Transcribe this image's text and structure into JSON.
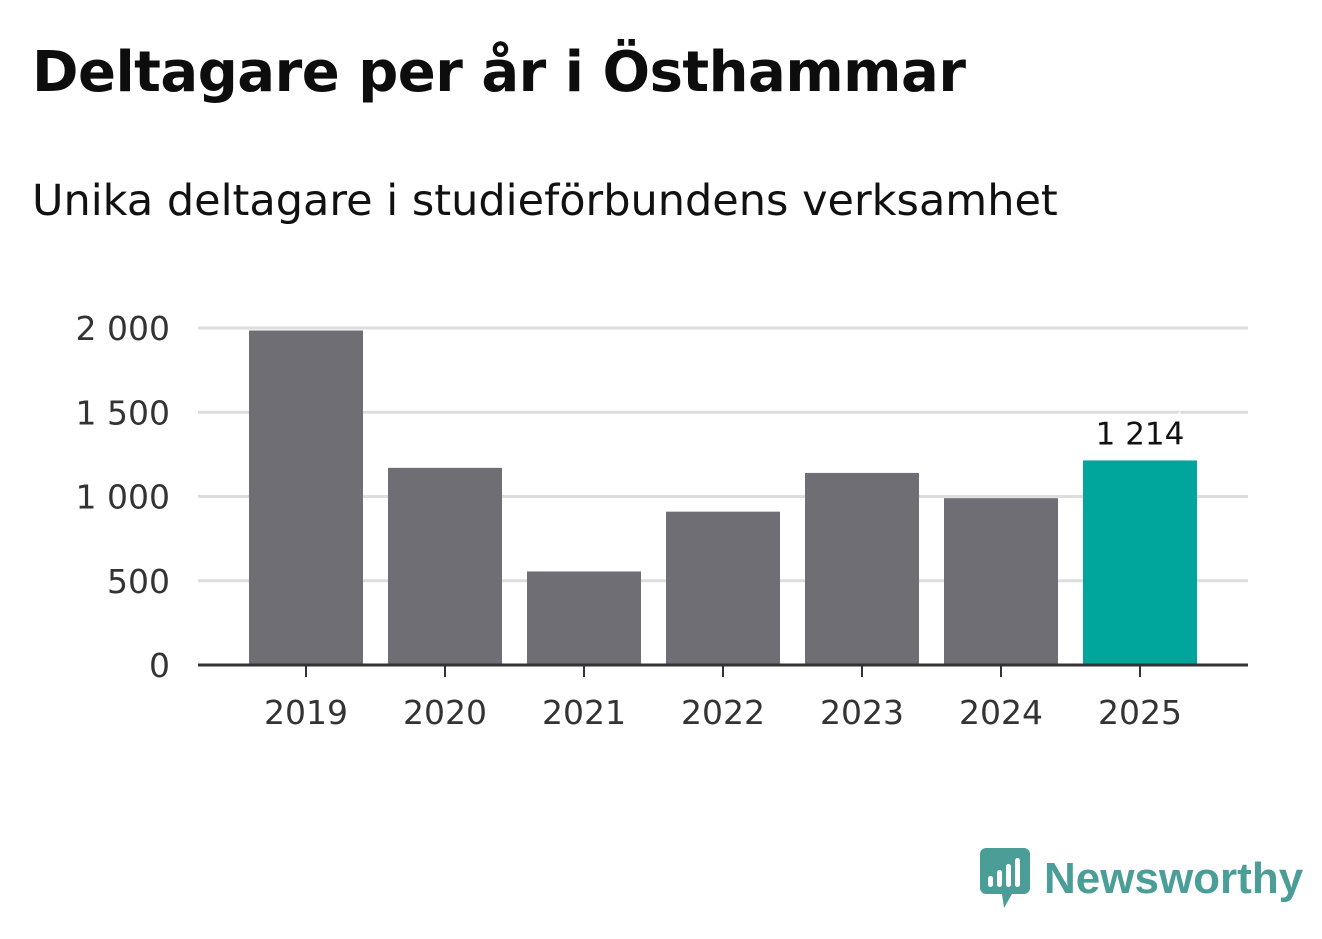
{
  "header": {
    "title": "Deltagare per år i Östhammar",
    "subtitle": "Unika deltagare i studieförbundens verksamhet"
  },
  "brand": {
    "name": "Newsworthy",
    "color": "#4a9e97"
  },
  "colors": {
    "bar_default": "#6f6e74",
    "bar_highlight": "#00a59b",
    "grid": "#dddddd",
    "axis": "#333333"
  },
  "chart_data": {
    "type": "bar",
    "title": "Deltagare per år i Östhammar",
    "subtitle": "Unika deltagare i studieförbundens verksamhet",
    "categories": [
      "2019",
      "2020",
      "2021",
      "2022",
      "2023",
      "2024",
      "2025"
    ],
    "values": [
      1985,
      1170,
      555,
      910,
      1140,
      990,
      1214
    ],
    "highlight_index": 6,
    "highlight_label": "1 214",
    "ylim": [
      0,
      2000
    ],
    "yticks": [
      0,
      500,
      1000,
      1500,
      2000
    ],
    "ytick_labels": [
      "0",
      "500",
      "1 000",
      "1 500",
      "2 000"
    ],
    "xlabel": "",
    "ylabel": "",
    "grid": true,
    "legend": "none"
  }
}
